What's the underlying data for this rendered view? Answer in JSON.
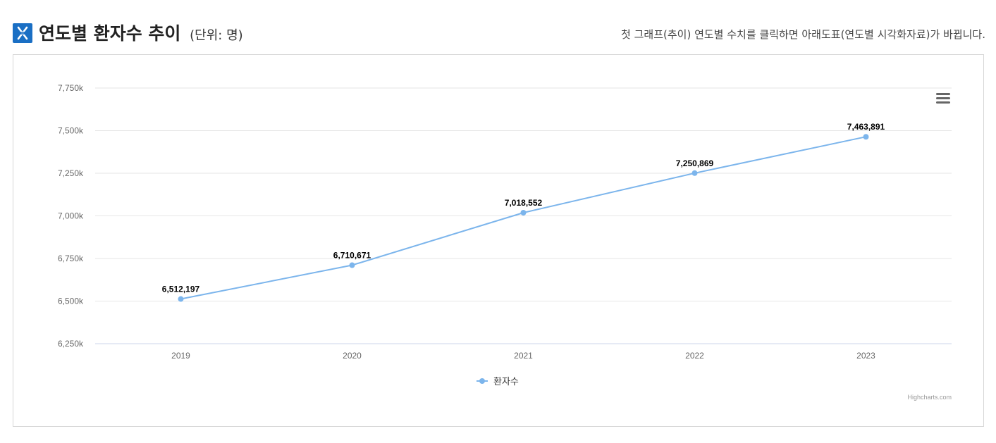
{
  "header": {
    "title": "연도별 환자수 추이",
    "unit": "(단위: 명)",
    "hint": "첫 그래프(추이) 연도별 수치를 클릭하면 아래도표(연도별 시각화자료)가 바뀝니다."
  },
  "colors": {
    "accent": "#1a6fc4",
    "series": "#7cb5ec",
    "grid": "#e6e6e6"
  },
  "icons": {
    "title": "chart-icon",
    "menu": "hamburger-menu-icon"
  },
  "chart_data": {
    "type": "line",
    "x": [
      "2019",
      "2020",
      "2021",
      "2022",
      "2023"
    ],
    "series": [
      {
        "name": "환자수",
        "values": [
          6512197,
          6710671,
          7018552,
          7250869,
          7463891
        ]
      }
    ],
    "data_labels": [
      "6,512,197",
      "6,710,671",
      "7,018,552",
      "7,250,869",
      "7,463,891"
    ],
    "y_ticks": [
      "6,250k",
      "6,500k",
      "6,750k",
      "7,000k",
      "7,250k",
      "7,500k",
      "7,750k"
    ],
    "ylim": [
      6250000,
      7750000
    ],
    "grid": true,
    "legend": "bottom-center",
    "credits": "Highcharts.com"
  }
}
